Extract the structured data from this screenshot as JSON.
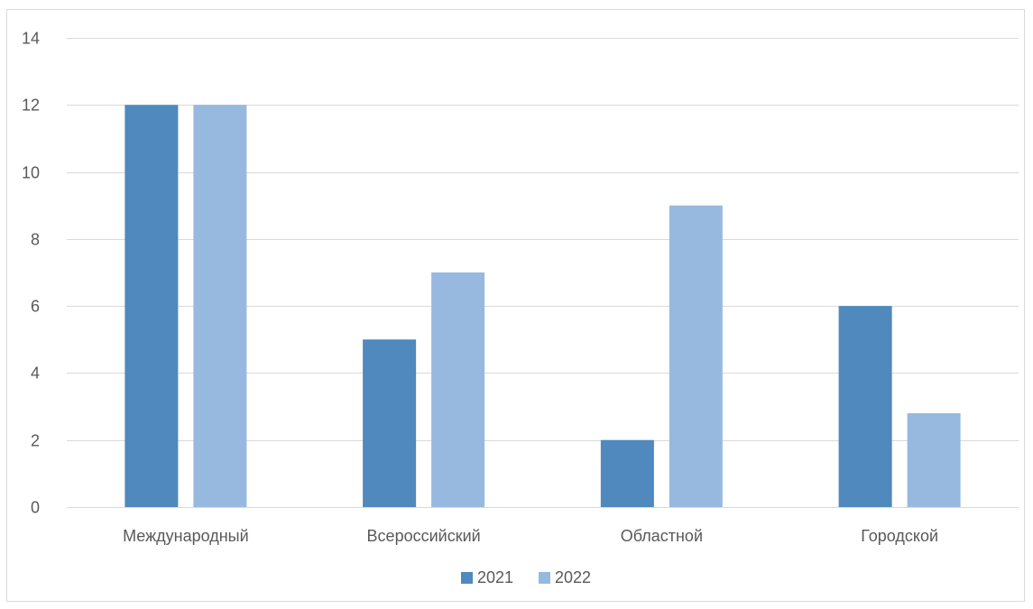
{
  "chart_data": {
    "type": "bar",
    "title": "",
    "xlabel": "",
    "ylabel": "",
    "categories": [
      "Международный",
      "Всероссийский",
      "Областной",
      "Городской"
    ],
    "series": [
      {
        "name": "2021",
        "values": [
          12,
          5,
          2,
          6
        ],
        "color": "#4f89bd"
      },
      {
        "name": "2022",
        "values": [
          12,
          7,
          9,
          2.8
        ],
        "color": "#98b9df"
      }
    ],
    "ylim": [
      0,
      14
    ],
    "yticks": [
      0,
      2,
      4,
      6,
      8,
      10,
      12,
      14
    ],
    "grid": true,
    "legend": "bottom",
    "gridline_color": "#d9d9d9",
    "border_color": "#d9d9d9"
  }
}
